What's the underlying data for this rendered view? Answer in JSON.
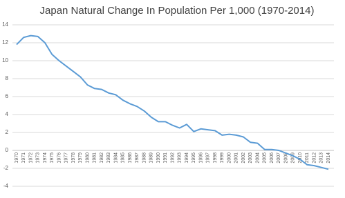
{
  "chart_data": {
    "type": "line",
    "title": "Japan Natural Change In Population Per 1,000 (1970-2014)",
    "categories": [
      "1970",
      "1971",
      "1972",
      "1973",
      "1974",
      "1975",
      "1976",
      "1977",
      "1978",
      "1979",
      "1980",
      "1981",
      "1982",
      "1983",
      "1984",
      "1985",
      "1986",
      "1987",
      "1988",
      "1989",
      "1990",
      "1991",
      "1992",
      "1993",
      "1994",
      "1995",
      "1996",
      "1997",
      "1998",
      "1999",
      "2000",
      "2001",
      "2002",
      "2003",
      "2004",
      "2005",
      "2006",
      "2007",
      "2008",
      "2009",
      "2010",
      "2011",
      "2012",
      "2013",
      "2014"
    ],
    "values": [
      11.8,
      12.6,
      12.8,
      12.7,
      12.0,
      10.7,
      10.0,
      9.4,
      8.8,
      8.2,
      7.3,
      6.9,
      6.8,
      6.4,
      6.2,
      5.6,
      5.2,
      4.9,
      4.4,
      3.7,
      3.2,
      3.2,
      2.8,
      2.5,
      2.9,
      2.1,
      2.4,
      2.3,
      2.2,
      1.7,
      1.8,
      1.7,
      1.5,
      0.9,
      0.8,
      0.1,
      0.1,
      0.0,
      -0.3,
      -0.6,
      -1.0,
      -1.6,
      -1.7,
      -1.9,
      -2.1
    ],
    "color": "#5b9bd5",
    "ylim": [
      -4,
      14
    ],
    "yticks": [
      -4,
      -2,
      0,
      2,
      4,
      6,
      8,
      10,
      12,
      14
    ],
    "grid": true
  }
}
